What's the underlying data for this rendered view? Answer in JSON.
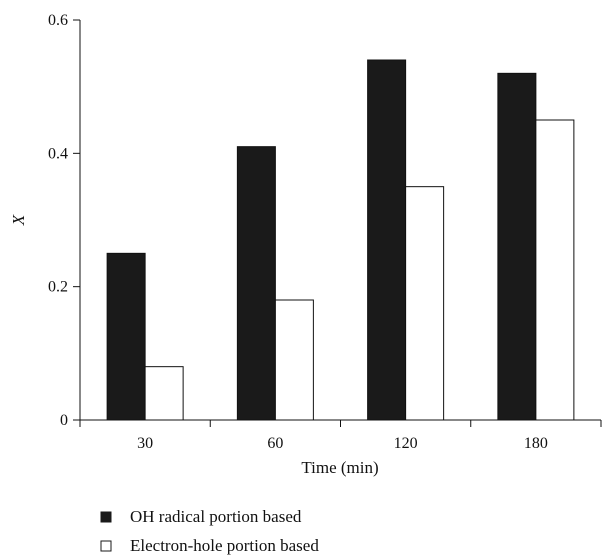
{
  "chart_data": {
    "type": "bar",
    "categories": [
      "30",
      "60",
      "120",
      "180"
    ],
    "series": [
      {
        "name": "OH radical portion based",
        "values": [
          0.25,
          0.41,
          0.54,
          0.52
        ],
        "color": "#1a1a1a"
      },
      {
        "name": "Electron-hole portion based",
        "values": [
          0.08,
          0.18,
          0.35,
          0.45
        ],
        "color": "#ffffff"
      }
    ],
    "xlabel": "Time (min)",
    "ylabel": "X",
    "ylim": [
      0,
      0.6
    ],
    "yticks": [
      0,
      0.2,
      0.4,
      0.6
    ],
    "ytick_labels": [
      "0",
      "0.2",
      "0.4",
      "0.6"
    ],
    "grid": false,
    "legend_position": "bottom-left"
  }
}
